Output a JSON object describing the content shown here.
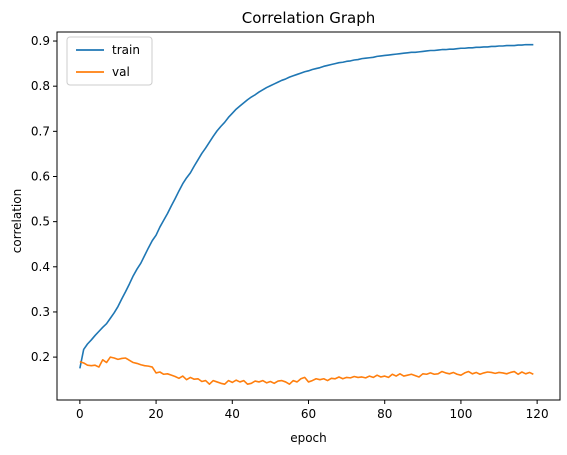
{
  "chart_data": {
    "type": "line",
    "title": "Correlation Graph",
    "xlabel": "epoch",
    "ylabel": "correlation",
    "xlim": [
      -6,
      126
    ],
    "ylim": [
      0.105,
      0.92
    ],
    "xticks": [
      0,
      20,
      40,
      60,
      80,
      100,
      120
    ],
    "yticks": [
      0.2,
      0.3,
      0.4,
      0.5,
      0.6,
      0.7,
      0.8,
      0.9
    ],
    "grid": false,
    "legend_position": "top-left",
    "series": [
      {
        "name": "train",
        "color": "#1f77b4",
        "x": [
          0,
          1,
          2,
          3,
          4,
          5,
          6,
          7,
          8,
          9,
          10,
          11,
          12,
          13,
          14,
          15,
          16,
          17,
          18,
          19,
          20,
          21,
          22,
          23,
          24,
          25,
          26,
          27,
          28,
          29,
          30,
          31,
          32,
          33,
          34,
          35,
          36,
          37,
          38,
          39,
          40,
          41,
          42,
          43,
          44,
          45,
          46,
          47,
          48,
          49,
          50,
          51,
          52,
          53,
          54,
          55,
          56,
          57,
          58,
          59,
          60,
          61,
          62,
          63,
          64,
          65,
          66,
          67,
          68,
          69,
          70,
          71,
          72,
          73,
          74,
          75,
          76,
          77,
          78,
          79,
          80,
          81,
          82,
          83,
          84,
          85,
          86,
          87,
          88,
          89,
          90,
          91,
          92,
          93,
          94,
          95,
          96,
          97,
          98,
          99,
          100,
          101,
          102,
          103,
          104,
          105,
          106,
          107,
          108,
          109,
          110,
          111,
          112,
          113,
          114,
          115,
          116,
          117,
          118,
          119
        ],
        "y": [
          0.175,
          0.217,
          0.229,
          0.238,
          0.248,
          0.257,
          0.266,
          0.274,
          0.286,
          0.298,
          0.312,
          0.329,
          0.345,
          0.362,
          0.38,
          0.395,
          0.408,
          0.425,
          0.442,
          0.458,
          0.47,
          0.488,
          0.503,
          0.518,
          0.535,
          0.551,
          0.568,
          0.584,
          0.597,
          0.608,
          0.623,
          0.637,
          0.651,
          0.663,
          0.676,
          0.689,
          0.701,
          0.711,
          0.72,
          0.731,
          0.74,
          0.749,
          0.756,
          0.763,
          0.77,
          0.776,
          0.781,
          0.787,
          0.792,
          0.797,
          0.801,
          0.805,
          0.809,
          0.813,
          0.816,
          0.82,
          0.823,
          0.826,
          0.829,
          0.832,
          0.834,
          0.837,
          0.839,
          0.841,
          0.844,
          0.846,
          0.848,
          0.85,
          0.852,
          0.853,
          0.855,
          0.856,
          0.858,
          0.859,
          0.861,
          0.862,
          0.863,
          0.864,
          0.866,
          0.867,
          0.868,
          0.869,
          0.87,
          0.871,
          0.872,
          0.873,
          0.874,
          0.875,
          0.875,
          0.876,
          0.877,
          0.878,
          0.879,
          0.879,
          0.88,
          0.881,
          0.881,
          0.882,
          0.882,
          0.883,
          0.884,
          0.884,
          0.885,
          0.885,
          0.886,
          0.886,
          0.887,
          0.887,
          0.888,
          0.888,
          0.889,
          0.889,
          0.89,
          0.89,
          0.89,
          0.891,
          0.891,
          0.892,
          0.892,
          0.892
        ]
      },
      {
        "name": "val",
        "color": "#ff7f0e",
        "x": [
          0,
          1,
          2,
          3,
          4,
          5,
          6,
          7,
          8,
          9,
          10,
          11,
          12,
          13,
          14,
          15,
          16,
          17,
          18,
          19,
          20,
          21,
          22,
          23,
          24,
          25,
          26,
          27,
          28,
          29,
          30,
          31,
          32,
          33,
          34,
          35,
          36,
          37,
          38,
          39,
          40,
          41,
          42,
          43,
          44,
          45,
          46,
          47,
          48,
          49,
          50,
          51,
          52,
          53,
          54,
          55,
          56,
          57,
          58,
          59,
          60,
          61,
          62,
          63,
          64,
          65,
          66,
          67,
          68,
          69,
          70,
          71,
          72,
          73,
          74,
          75,
          76,
          77,
          78,
          79,
          80,
          81,
          82,
          83,
          84,
          85,
          86,
          87,
          88,
          89,
          90,
          91,
          92,
          93,
          94,
          95,
          96,
          97,
          98,
          99,
          100,
          101,
          102,
          103,
          104,
          105,
          106,
          107,
          108,
          109,
          110,
          111,
          112,
          113,
          114,
          115,
          116,
          117,
          118,
          119
        ],
        "y": [
          0.19,
          0.187,
          0.182,
          0.181,
          0.182,
          0.178,
          0.194,
          0.188,
          0.2,
          0.198,
          0.195,
          0.197,
          0.198,
          0.193,
          0.188,
          0.186,
          0.183,
          0.181,
          0.18,
          0.178,
          0.165,
          0.167,
          0.162,
          0.163,
          0.16,
          0.157,
          0.153,
          0.158,
          0.15,
          0.155,
          0.151,
          0.152,
          0.146,
          0.148,
          0.14,
          0.148,
          0.145,
          0.142,
          0.14,
          0.148,
          0.144,
          0.149,
          0.145,
          0.148,
          0.14,
          0.142,
          0.147,
          0.145,
          0.148,
          0.143,
          0.146,
          0.142,
          0.147,
          0.148,
          0.145,
          0.14,
          0.148,
          0.145,
          0.152,
          0.155,
          0.145,
          0.148,
          0.152,
          0.15,
          0.152,
          0.148,
          0.153,
          0.152,
          0.156,
          0.152,
          0.155,
          0.154,
          0.157,
          0.155,
          0.156,
          0.154,
          0.158,
          0.155,
          0.16,
          0.156,
          0.158,
          0.155,
          0.162,
          0.158,
          0.163,
          0.158,
          0.16,
          0.162,
          0.159,
          0.156,
          0.163,
          0.162,
          0.165,
          0.162,
          0.163,
          0.168,
          0.165,
          0.163,
          0.166,
          0.162,
          0.16,
          0.165,
          0.168,
          0.163,
          0.166,
          0.162,
          0.165,
          0.167,
          0.166,
          0.164,
          0.166,
          0.165,
          0.163,
          0.166,
          0.168,
          0.162,
          0.167,
          0.163,
          0.166,
          0.162
        ]
      }
    ]
  }
}
